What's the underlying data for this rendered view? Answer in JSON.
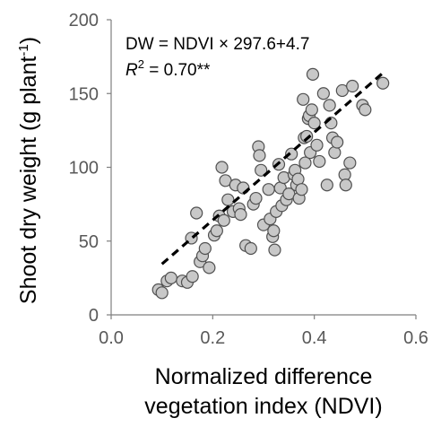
{
  "chart_data": {
    "type": "scatter",
    "title": "",
    "xlabel_line1": "Normalized difference",
    "xlabel_line2": "vegetation index (NDVI)",
    "ylabel_text": "Shoot dry weight  (g plant",
    "ylabel_sup": "-1",
    "ylabel_close": ")",
    "xlim": [
      0.0,
      0.6
    ],
    "ylim": [
      0,
      200
    ],
    "x_ticks": [
      "0.0",
      "0.2",
      "0.4",
      "0.6"
    ],
    "y_ticks": [
      "0",
      "50",
      "100",
      "150",
      "200"
    ],
    "grid": false,
    "annotations": {
      "equation": "DW = NDVI × 297.6+4.7",
      "r2_symbol": "R",
      "r2_sup": "2",
      "r2_value": " = 0.70**"
    },
    "fit_line": {
      "slope": 297.6,
      "intercept": 4.7,
      "x_range": [
        0.1,
        0.54
      ],
      "style": "dashed",
      "color": "#000000"
    },
    "marker_fill": "#c8c8c8",
    "marker_edge": "#505050",
    "points": [
      {
        "x": 0.093,
        "y": 17
      },
      {
        "x": 0.1,
        "y": 15
      },
      {
        "x": 0.11,
        "y": 23
      },
      {
        "x": 0.118,
        "y": 25
      },
      {
        "x": 0.14,
        "y": 23
      },
      {
        "x": 0.15,
        "y": 22
      },
      {
        "x": 0.158,
        "y": 52
      },
      {
        "x": 0.16,
        "y": 26
      },
      {
        "x": 0.168,
        "y": 69
      },
      {
        "x": 0.175,
        "y": 36
      },
      {
        "x": 0.18,
        "y": 40
      },
      {
        "x": 0.185,
        "y": 45
      },
      {
        "x": 0.193,
        "y": 32
      },
      {
        "x": 0.203,
        "y": 54
      },
      {
        "x": 0.208,
        "y": 57
      },
      {
        "x": 0.213,
        "y": 67
      },
      {
        "x": 0.218,
        "y": 100
      },
      {
        "x": 0.222,
        "y": 64
      },
      {
        "x": 0.225,
        "y": 91
      },
      {
        "x": 0.23,
        "y": 78
      },
      {
        "x": 0.24,
        "y": 70
      },
      {
        "x": 0.245,
        "y": 88
      },
      {
        "x": 0.252,
        "y": 72
      },
      {
        "x": 0.255,
        "y": 68
      },
      {
        "x": 0.26,
        "y": 86
      },
      {
        "x": 0.265,
        "y": 47
      },
      {
        "x": 0.275,
        "y": 45
      },
      {
        "x": 0.28,
        "y": 75
      },
      {
        "x": 0.285,
        "y": 79
      },
      {
        "x": 0.29,
        "y": 114
      },
      {
        "x": 0.292,
        "y": 108
      },
      {
        "x": 0.295,
        "y": 98
      },
      {
        "x": 0.3,
        "y": 61
      },
      {
        "x": 0.31,
        "y": 85
      },
      {
        "x": 0.313,
        "y": 65
      },
      {
        "x": 0.318,
        "y": 53
      },
      {
        "x": 0.32,
        "y": 57
      },
      {
        "x": 0.322,
        "y": 44
      },
      {
        "x": 0.325,
        "y": 70
      },
      {
        "x": 0.33,
        "y": 102
      },
      {
        "x": 0.333,
        "y": 86
      },
      {
        "x": 0.336,
        "y": 74
      },
      {
        "x": 0.34,
        "y": 93
      },
      {
        "x": 0.345,
        "y": 78
      },
      {
        "x": 0.35,
        "y": 82
      },
      {
        "x": 0.355,
        "y": 109
      },
      {
        "x": 0.36,
        "y": 95
      },
      {
        "x": 0.362,
        "y": 98
      },
      {
        "x": 0.365,
        "y": 88
      },
      {
        "x": 0.368,
        "y": 92
      },
      {
        "x": 0.37,
        "y": 79
      },
      {
        "x": 0.375,
        "y": 85
      },
      {
        "x": 0.378,
        "y": 146
      },
      {
        "x": 0.38,
        "y": 120
      },
      {
        "x": 0.382,
        "y": 103
      },
      {
        "x": 0.385,
        "y": 121
      },
      {
        "x": 0.388,
        "y": 133
      },
      {
        "x": 0.39,
        "y": 135
      },
      {
        "x": 0.392,
        "y": 110
      },
      {
        "x": 0.395,
        "y": 139
      },
      {
        "x": 0.397,
        "y": 163
      },
      {
        "x": 0.4,
        "y": 130
      },
      {
        "x": 0.405,
        "y": 115
      },
      {
        "x": 0.41,
        "y": 104
      },
      {
        "x": 0.418,
        "y": 150
      },
      {
        "x": 0.425,
        "y": 88
      },
      {
        "x": 0.43,
        "y": 142
      },
      {
        "x": 0.433,
        "y": 130
      },
      {
        "x": 0.436,
        "y": 120
      },
      {
        "x": 0.44,
        "y": 110
      },
      {
        "x": 0.445,
        "y": 117
      },
      {
        "x": 0.455,
        "y": 152
      },
      {
        "x": 0.46,
        "y": 95
      },
      {
        "x": 0.462,
        "y": 88
      },
      {
        "x": 0.47,
        "y": 103
      },
      {
        "x": 0.475,
        "y": 155
      },
      {
        "x": 0.495,
        "y": 142
      },
      {
        "x": 0.5,
        "y": 139
      },
      {
        "x": 0.535,
        "y": 157
      }
    ]
  }
}
